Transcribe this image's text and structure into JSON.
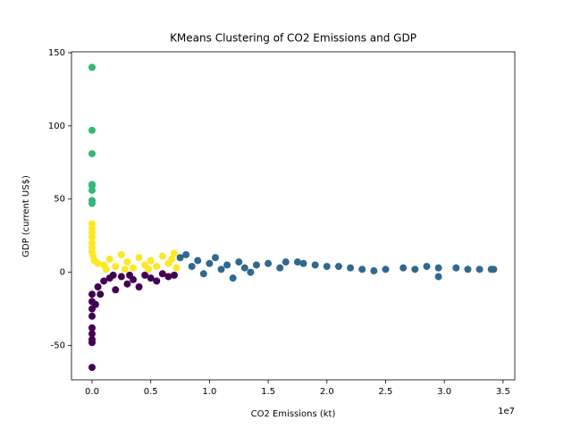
{
  "chart_data": {
    "type": "scatter",
    "title": "KMeans Clustering of CO2 Emissions and GDP",
    "x_label": "CO2 Emissions (kt)",
    "y_label": "GDP (current US$)",
    "x_offset_label": "1e7",
    "xlim": [
      -1750000,
      36000000
    ],
    "ylim": [
      -73.5,
      150.6
    ],
    "xticks": [
      {
        "value": 0,
        "label": "0.0"
      },
      {
        "value": 5000000,
        "label": "0.5"
      },
      {
        "value": 10000000,
        "label": "1.0"
      },
      {
        "value": 15000000,
        "label": "1.5"
      },
      {
        "value": 20000000,
        "label": "2.0"
      },
      {
        "value": 25000000,
        "label": "2.5"
      },
      {
        "value": 30000000,
        "label": "3.0"
      },
      {
        "value": 35000000,
        "label": "3.5"
      }
    ],
    "yticks": [
      -50,
      0,
      50,
      100,
      150
    ],
    "grid": false,
    "series": [
      {
        "color": "#440154",
        "x": [
          0,
          0,
          0,
          0,
          0,
          0,
          0,
          0,
          0,
          300000,
          500000,
          1000000,
          1500000,
          2000000,
          2500000,
          3000000,
          3500000,
          4000000,
          4500000,
          5000000,
          5500000,
          6000000,
          6500000,
          7000000,
          1800000,
          700000,
          3200000
        ],
        "values": [
          -65,
          -48,
          -46,
          -42,
          -38,
          -30,
          -25,
          -20,
          -15,
          -22,
          -10,
          -6,
          -4,
          -12,
          -3,
          -8,
          -5,
          -10,
          -2,
          -4,
          -6,
          -1,
          -3,
          -2,
          -2,
          -15,
          -2
        ]
      },
      {
        "color": "#31688e",
        "x": [
          7500000,
          8000000,
          8500000,
          9000000,
          9500000,
          10000000,
          10500000,
          11000000,
          11500000,
          12000000,
          12500000,
          13000000,
          13500000,
          14000000,
          15000000,
          16000000,
          16500000,
          17500000,
          18000000,
          19000000,
          20000000,
          21000000,
          22000000,
          23000000,
          24000000,
          25000000,
          26500000,
          27500000,
          28500000,
          29500000,
          29500000,
          31000000,
          32000000,
          33000000,
          34000000,
          34200000
        ],
        "values": [
          10,
          12,
          4,
          8,
          -1,
          6,
          10,
          2,
          5,
          -4,
          7,
          3,
          0,
          5,
          6,
          3,
          7,
          7,
          6,
          5,
          4,
          4,
          3,
          2,
          1,
          2,
          3,
          2,
          4,
          -3,
          3,
          3,
          2,
          2,
          2,
          2
        ]
      },
      {
        "color": "#35b779",
        "x": [
          0,
          0,
          0,
          0,
          0,
          0,
          0,
          0
        ],
        "values": [
          140,
          97,
          81,
          60,
          59,
          56,
          49,
          47
        ]
      },
      {
        "color": "#fde725",
        "x": [
          0,
          0,
          0,
          0,
          0,
          0,
          0,
          100000,
          200000,
          500000,
          1000000,
          1500000,
          2000000,
          2500000,
          3000000,
          3500000,
          4000000,
          4500000,
          5000000,
          5500000,
          6000000,
          6500000,
          7000000,
          7200000,
          2800000,
          1200000,
          4800000,
          6800000
        ],
        "values": [
          33,
          30,
          27,
          24,
          20,
          17,
          14,
          11,
          8,
          6,
          5,
          9,
          4,
          12,
          7,
          3,
          10,
          5,
          8,
          4,
          11,
          6,
          13,
          3,
          2,
          2,
          2,
          9
        ]
      }
    ]
  }
}
